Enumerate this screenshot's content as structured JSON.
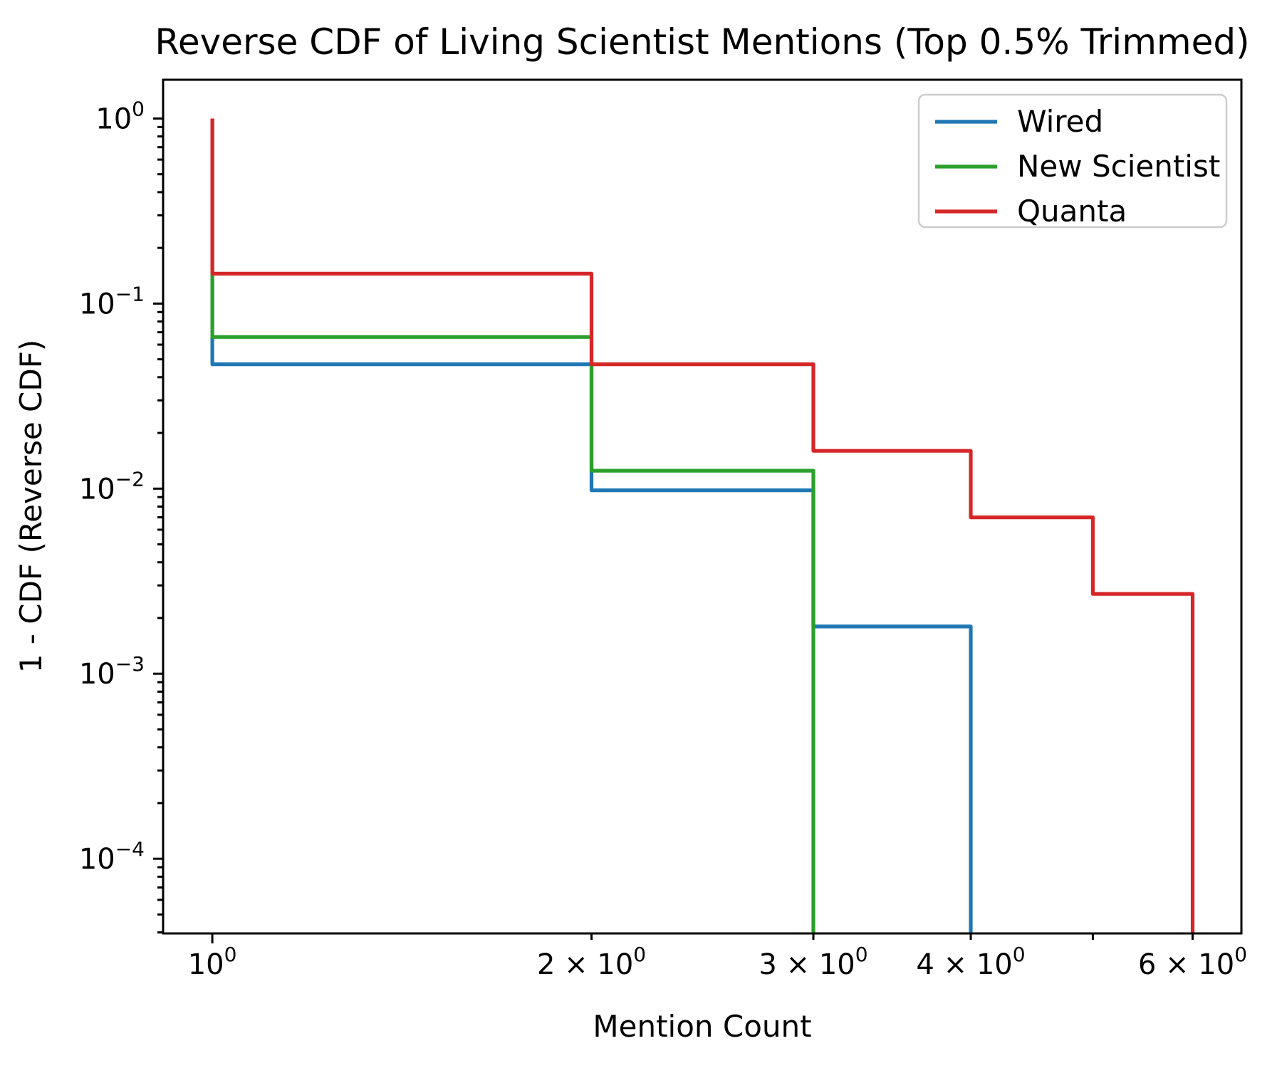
{
  "chart_data": {
    "type": "step",
    "title": "Reverse CDF of Living Scientist Mentions (Top 0.5% Trimmed)",
    "xlabel": "Mention Count",
    "ylabel": "1 - CDF (Reverse CDF)",
    "x_scale": "log",
    "y_scale": "log",
    "xlim": [
      0.914,
      6.56
    ],
    "ylim": [
      3.95e-05,
      1.62
    ],
    "grid": false,
    "background": "#ffffff",
    "axis_color": "#000000",
    "legend": {
      "position": "upper right",
      "border_color": "#cccccc",
      "fill_color": "#ffffff",
      "entries": [
        {
          "label": "Wired",
          "color": "#1f77b4"
        },
        {
          "label": "New Scientist",
          "color": "#2ca02c"
        },
        {
          "label": "Quanta",
          "color": "#d62728"
        }
      ]
    },
    "series": [
      {
        "name": "Wired",
        "color": "#1f77b4",
        "x": [
          1,
          2,
          3,
          4
        ],
        "survival": [
          1.0,
          0.047,
          0.0098,
          0.0018
        ],
        "drops_to_zero_at": 4
      },
      {
        "name": "New Scientist",
        "color": "#2ca02c",
        "x": [
          1,
          2,
          3
        ],
        "survival": [
          1.0,
          0.066,
          0.0125
        ],
        "drops_to_zero_at": 3
      },
      {
        "name": "Quanta",
        "color": "#d62728",
        "x": [
          1,
          2,
          3,
          4,
          5,
          6
        ],
        "survival": [
          1.0,
          0.145,
          0.047,
          0.016,
          0.007,
          0.0027
        ],
        "drops_to_zero_at": 6
      }
    ],
    "x_ticks": {
      "major": [
        {
          "value": 1,
          "coeff": "",
          "exp": "0"
        }
      ],
      "minor_labeled": [
        {
          "value": 2,
          "coeff": "2 × ",
          "exp": "0"
        },
        {
          "value": 3,
          "coeff": "3 × ",
          "exp": "0"
        },
        {
          "value": 4,
          "coeff": "4 × ",
          "exp": "0"
        },
        {
          "value": 6,
          "coeff": "6 × ",
          "exp": "0"
        }
      ],
      "minor_unlabeled": [
        5
      ]
    },
    "y_ticks": {
      "major": [
        {
          "value": 1,
          "exp": "0"
        },
        {
          "value": 0.1,
          "exp": "−1"
        },
        {
          "value": 0.01,
          "exp": "−2"
        },
        {
          "value": 0.001,
          "exp": "−3"
        },
        {
          "value": 0.0001,
          "exp": "−4"
        }
      ]
    }
  }
}
